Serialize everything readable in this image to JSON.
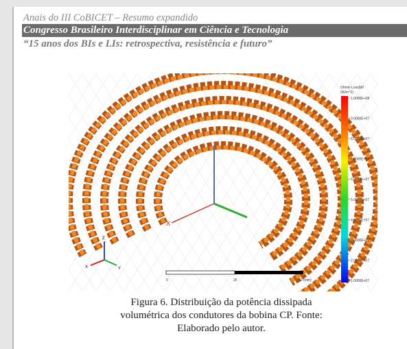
{
  "header": {
    "line1": "Anais do III CoBICET – Resumo expandido",
    "line2": "Congresso Brasileiro Interdisciplinar em Ciência e Tecnologia",
    "line3": "“15 anos dos BIs e LIs: retrospectiva, resistência e futuro”"
  },
  "figure": {
    "legend_title": [
      "Ohmic-Loss[W/",
      "(W/m^3)"
    ],
    "legend_values": [
      "1.0000E+08",
      "9.0000E+07",
      "8.0000E+07",
      "7.0000E+07",
      "6.0000E+07",
      "5.0000E+07",
      "4.0000E+07",
      "3.0000E+07",
      "2.0000E+07",
      "1.0000E+07"
    ],
    "scale_labels": [
      "0",
      "25",
      "50 (mm)"
    ],
    "axis_labels": [
      "X",
      "Y",
      "Z"
    ]
  },
  "caption": {
    "lines": [
      "Figura 6. Distribuição da potência dissipada",
      "volumétrica dos condutores da bobina CP. Fonte:",
      "Elaborado pelo autor."
    ]
  }
}
